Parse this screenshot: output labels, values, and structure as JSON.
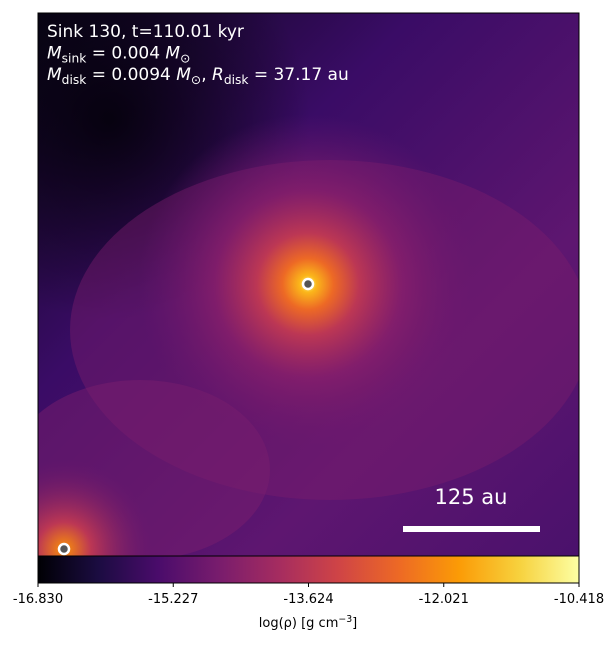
{
  "chart_data": {
    "type": "image",
    "info_lines": [
      [
        {
          "t": "Sink 130, t=110.01 kyr"
        }
      ],
      [
        {
          "t": "M",
          "italic": true
        },
        {
          "t": "sink",
          "sub": true
        },
        {
          "t": " = 0.004 "
        },
        {
          "t": "M",
          "italic": true
        },
        {
          "t": "⊙",
          "sub": true
        }
      ],
      [
        {
          "t": "M",
          "italic": true
        },
        {
          "t": "disk",
          "sub": true
        },
        {
          "t": " = 0.0094 "
        },
        {
          "t": "M",
          "italic": true
        },
        {
          "t": "⊙",
          "sub": true
        },
        {
          "t": ", "
        },
        {
          "t": "R",
          "italic": true
        },
        {
          "t": "disk",
          "sub": true
        },
        {
          "t": " = 37.17 au"
        }
      ]
    ],
    "scale_bar_label": "125 au",
    "colorbar": {
      "colormap": "inferno",
      "lim": [
        -16.83,
        -10.418
      ],
      "ticks": [
        {
          "value": -16.83,
          "label": "-16.830"
        },
        {
          "value": -15.227,
          "label": "-15.227"
        },
        {
          "value": -13.624,
          "label": "-13.624"
        },
        {
          "value": -12.021,
          "label": "-12.021"
        },
        {
          "value": -10.418,
          "label": "-10.418"
        }
      ],
      "label": [
        {
          "t": "log(ρ) [g cm"
        },
        {
          "t": "−3",
          "sup": true
        },
        {
          "t": "]"
        }
      ]
    }
  }
}
